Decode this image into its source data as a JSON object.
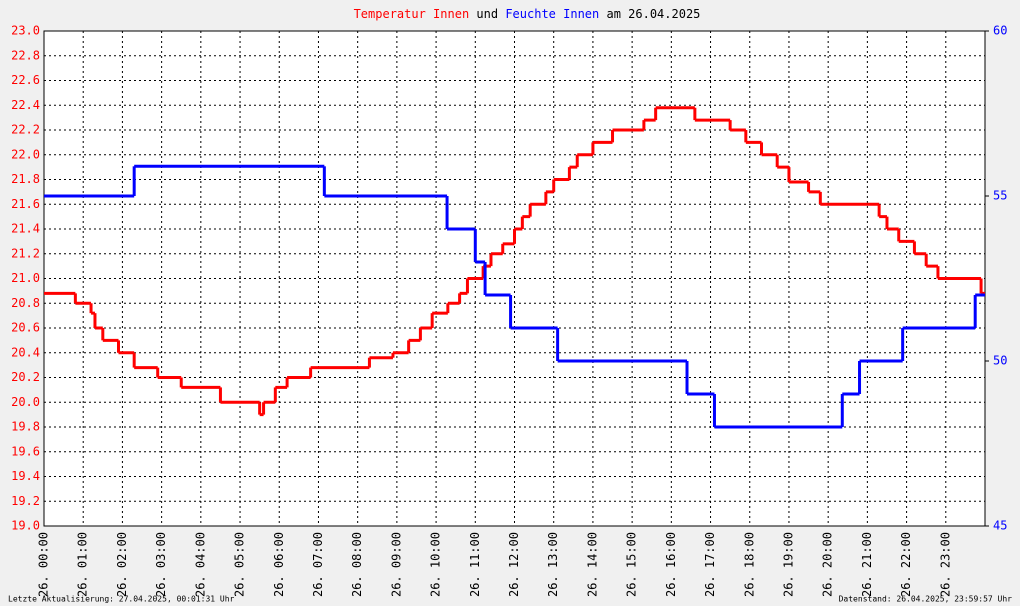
{
  "chart_data": {
    "type": "step",
    "title_parts": [
      {
        "text": "Temperatur Innen",
        "color": "#ff0000"
      },
      {
        "text": "und",
        "color": "#000000"
      },
      {
        "text": "Feuchte Innen",
        "color": "#0000ff"
      },
      {
        "text": "am 26.04.2025",
        "color": "#000000"
      }
    ],
    "footer_left": "Letzte Aktualisierung: 27.04.2025, 00:01:31 Uhr",
    "footer_right": "Datenstand: 26.04.2025, 23:59:57 Uhr",
    "xlim": [
      0,
      24
    ],
    "xticks": [
      {
        "value": 0,
        "label": "26. 00:00"
      },
      {
        "value": 1,
        "label": "26. 01:00"
      },
      {
        "value": 2,
        "label": "26. 02:00"
      },
      {
        "value": 3,
        "label": "26. 03:00"
      },
      {
        "value": 4,
        "label": "26. 04:00"
      },
      {
        "value": 5,
        "label": "26. 05:00"
      },
      {
        "value": 6,
        "label": "26. 06:00"
      },
      {
        "value": 7,
        "label": "26. 07:00"
      },
      {
        "value": 8,
        "label": "26. 08:00"
      },
      {
        "value": 9,
        "label": "26. 09:00"
      },
      {
        "value": 10,
        "label": "26. 10:00"
      },
      {
        "value": 11,
        "label": "26. 11:00"
      },
      {
        "value": 12,
        "label": "26. 12:00"
      },
      {
        "value": 13,
        "label": "26. 13:00"
      },
      {
        "value": 14,
        "label": "26. 14:00"
      },
      {
        "value": 15,
        "label": "26. 15:00"
      },
      {
        "value": 16,
        "label": "26. 16:00"
      },
      {
        "value": 17,
        "label": "26. 17:00"
      },
      {
        "value": 18,
        "label": "26. 18:00"
      },
      {
        "value": 19,
        "label": "26. 19:00"
      },
      {
        "value": 20,
        "label": "26. 20:00"
      },
      {
        "value": 21,
        "label": "26. 21:00"
      },
      {
        "value": 22,
        "label": "26. 22:00"
      },
      {
        "value": 23,
        "label": "26. 23:00"
      }
    ],
    "ylim": [
      19,
      23
    ],
    "yticks": [
      {
        "value": 19,
        "label": "19.0"
      },
      19.2,
      19.4,
      19.6,
      19.8,
      {
        "value": 20,
        "label": "20.0"
      },
      20.2,
      20.4,
      20.6,
      20.8,
      {
        "value": 21,
        "label": "21.0"
      },
      21.2,
      21.4,
      21.6,
      21.8,
      {
        "value": 22,
        "label": "22.0"
      },
      22.2,
      22.4,
      22.6,
      22.8,
      {
        "value": 23,
        "label": "23.0"
      }
    ],
    "y2lim": [
      45,
      60
    ],
    "y2ticks": [
      45,
      50,
      55,
      60
    ],
    "grid": true,
    "series": [
      {
        "name": "Temperatur Innen",
        "color": "#ff0000",
        "x": [
          0,
          0.8,
          1.2,
          1.3,
          1.5,
          1.9,
          2.3,
          2.9,
          3.5,
          4.5,
          5.5,
          5.6,
          5.9,
          6.2,
          6.8,
          8.3,
          8.9,
          9.3,
          9.6,
          9.9,
          10.3,
          10.6,
          10.8,
          11.2,
          11.4,
          11.7,
          12.0,
          12.2,
          12.4,
          12.8,
          13.0,
          13.4,
          13.6,
          14.0,
          14.5,
          15.3,
          15.6,
          16.6,
          17.5,
          17.9,
          18.3,
          18.7,
          19.0,
          19.5,
          19.8,
          21.3,
          21.5,
          21.8,
          22.2,
          22.5,
          22.8,
          23.9
        ],
        "values": [
          20.88,
          20.8,
          20.72,
          20.6,
          20.5,
          20.4,
          20.28,
          20.2,
          20.12,
          20.0,
          19.9,
          20.0,
          20.12,
          20.2,
          20.28,
          20.36,
          20.4,
          20.5,
          20.6,
          20.72,
          20.8,
          20.88,
          21.0,
          21.1,
          21.2,
          21.28,
          21.4,
          21.5,
          21.6,
          21.7,
          21.8,
          21.9,
          22.0,
          22.1,
          22.2,
          22.28,
          22.38,
          22.28,
          22.2,
          22.1,
          22.0,
          21.9,
          21.78,
          21.7,
          21.6,
          21.5,
          21.4,
          21.3,
          21.2,
          21.1,
          21.0,
          20.88
        ]
      },
      {
        "name": "Feuchte Innen",
        "color": "#0000ff",
        "axis": "y2",
        "x": [
          0,
          2.3,
          7.15,
          10.28,
          11.0,
          11.25,
          11.9,
          13.1,
          16.4,
          17.1,
          20.36,
          20.8,
          21.9,
          23.75
        ],
        "values": [
          55,
          55.9,
          55,
          54,
          53,
          52,
          51,
          50,
          49,
          48,
          49,
          50,
          51,
          52
        ]
      }
    ]
  }
}
